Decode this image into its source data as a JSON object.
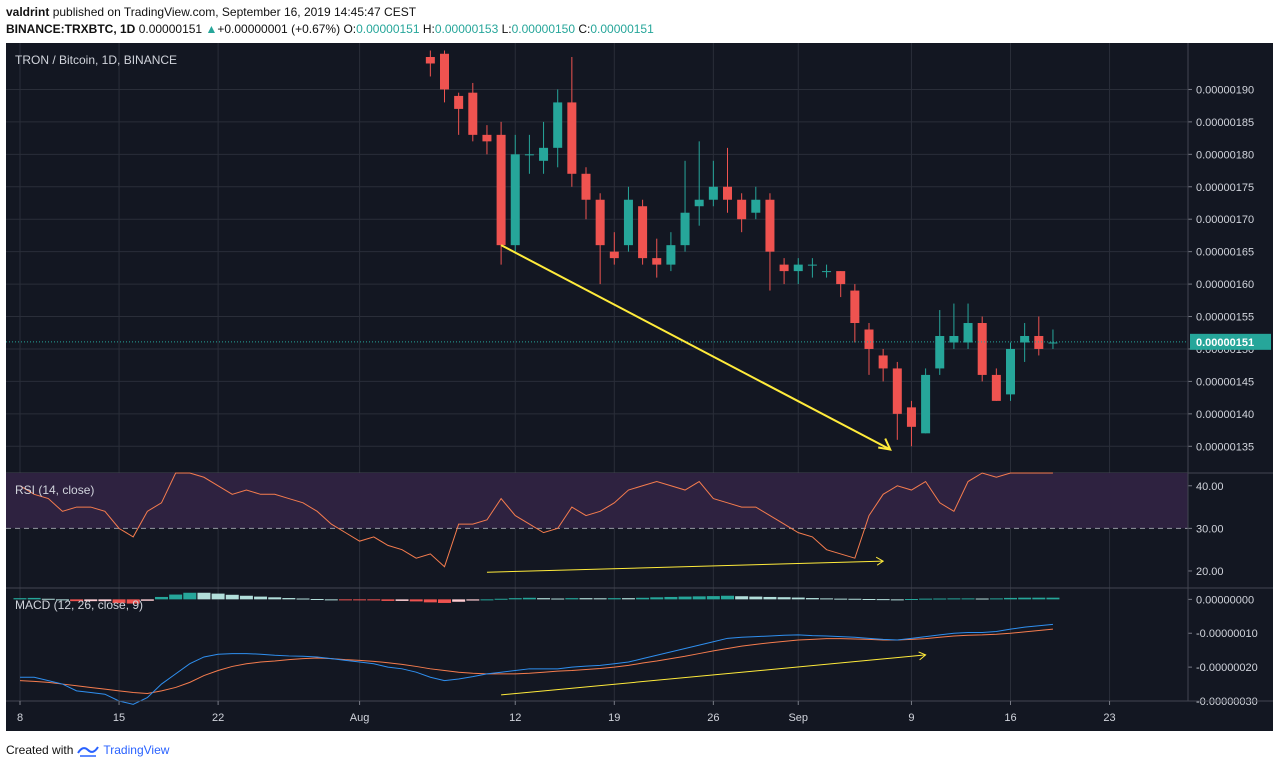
{
  "header": {
    "author": "valdrint",
    "published_text": "published on TradingView.com, September 16, 2019 14:45:47 CEST",
    "symbol": "BINANCE:TRXBTC, 1D",
    "last": "0.00000151",
    "change": "+0.00000001 (+0.67%)",
    "o_label": "O:",
    "o": "0.00000151",
    "h_label": "H:",
    "h": "0.00000153",
    "l_label": "L:",
    "l": "0.00000150",
    "c_label": "C:",
    "c": "0.00000151"
  },
  "footer": {
    "created_with": "Created with",
    "brand": "TradingView"
  },
  "colors": {
    "bg": "#131722",
    "grid": "#2a2e39",
    "up": "#26a69a",
    "down": "#ef5350",
    "rsi_line": "#f57c4e",
    "rsi_band": "#2e2240",
    "macd_line": "#2f8fef",
    "signal_line": "#f57c4e",
    "annotation": "#ffeb3b",
    "price_label_bg": "#26a69a",
    "axis_text": "#d1d4dc"
  },
  "chart_data": [
    {
      "type": "candlestick",
      "title": "TRON / Bitcoin, 1D, BINANCE",
      "y_ticks": [
        "0.00000135",
        "0.00000140",
        "0.00000145",
        "0.00000150",
        "0.00000155",
        "0.00000160",
        "0.00000165",
        "0.00000170",
        "0.00000175",
        "0.00000180",
        "0.00000185",
        "0.00000190"
      ],
      "ylim": [
        1.315e-06,
        1.95e-06
      ],
      "last_price_label": "0.00000151",
      "last_price": 1.511e-06,
      "x_tick_labels": [
        "8",
        "15",
        "22",
        "Aug",
        "12",
        "19",
        "26",
        "Sep",
        "9",
        "16",
        "23"
      ],
      "x_tick_day_index": [
        0,
        7,
        14,
        24,
        35,
        42,
        49,
        55,
        63,
        70,
        77
      ],
      "candles": [
        {
          "i": 29,
          "o": 1.95,
          "h": 1.96,
          "l": 1.92,
          "c": 1.94
        },
        {
          "i": 30,
          "o": 1.955,
          "h": 1.96,
          "l": 1.88,
          "c": 1.9
        },
        {
          "i": 31,
          "o": 1.89,
          "h": 1.895,
          "l": 1.83,
          "c": 1.87
        },
        {
          "i": 32,
          "o": 1.895,
          "h": 1.91,
          "l": 1.82,
          "c": 1.83
        },
        {
          "i": 33,
          "o": 1.83,
          "h": 1.845,
          "l": 1.8,
          "c": 1.82
        },
        {
          "i": 34,
          "o": 1.83,
          "h": 1.85,
          "l": 1.63,
          "c": 1.66
        },
        {
          "i": 35,
          "o": 1.66,
          "h": 1.83,
          "l": 1.65,
          "c": 1.8
        },
        {
          "i": 36,
          "o": 1.8,
          "h": 1.83,
          "l": 1.77,
          "c": 1.8
        },
        {
          "i": 37,
          "o": 1.79,
          "h": 1.85,
          "l": 1.77,
          "c": 1.81
        },
        {
          "i": 38,
          "o": 1.81,
          "h": 1.9,
          "l": 1.78,
          "c": 1.88
        },
        {
          "i": 39,
          "o": 1.88,
          "h": 1.95,
          "l": 1.75,
          "c": 1.77
        },
        {
          "i": 40,
          "o": 1.77,
          "h": 1.78,
          "l": 1.7,
          "c": 1.73
        },
        {
          "i": 41,
          "o": 1.73,
          "h": 1.74,
          "l": 1.6,
          "c": 1.66
        },
        {
          "i": 42,
          "o": 1.65,
          "h": 1.68,
          "l": 1.63,
          "c": 1.64
        },
        {
          "i": 43,
          "o": 1.66,
          "h": 1.75,
          "l": 1.65,
          "c": 1.73
        },
        {
          "i": 44,
          "o": 1.72,
          "h": 1.73,
          "l": 1.63,
          "c": 1.64
        },
        {
          "i": 45,
          "o": 1.64,
          "h": 1.67,
          "l": 1.61,
          "c": 1.63
        },
        {
          "i": 46,
          "o": 1.63,
          "h": 1.68,
          "l": 1.62,
          "c": 1.66
        },
        {
          "i": 47,
          "o": 1.66,
          "h": 1.79,
          "l": 1.65,
          "c": 1.71
        },
        {
          "i": 48,
          "o": 1.72,
          "h": 1.82,
          "l": 1.69,
          "c": 1.73
        },
        {
          "i": 49,
          "o": 1.73,
          "h": 1.79,
          "l": 1.72,
          "c": 1.75
        },
        {
          "i": 50,
          "o": 1.75,
          "h": 1.81,
          "l": 1.71,
          "c": 1.73
        },
        {
          "i": 51,
          "o": 1.73,
          "h": 1.74,
          "l": 1.68,
          "c": 1.7
        },
        {
          "i": 52,
          "o": 1.71,
          "h": 1.75,
          "l": 1.7,
          "c": 1.73
        },
        {
          "i": 53,
          "o": 1.73,
          "h": 1.74,
          "l": 1.59,
          "c": 1.65
        },
        {
          "i": 54,
          "o": 1.63,
          "h": 1.64,
          "l": 1.6,
          "c": 1.62
        },
        {
          "i": 55,
          "o": 1.62,
          "h": 1.64,
          "l": 1.6,
          "c": 1.63
        },
        {
          "i": 56,
          "o": 1.63,
          "h": 1.64,
          "l": 1.61,
          "c": 1.63
        },
        {
          "i": 57,
          "o": 1.62,
          "h": 1.63,
          "l": 1.61,
          "c": 1.62
        },
        {
          "i": 58,
          "o": 1.62,
          "h": 1.62,
          "l": 1.58,
          "c": 1.6
        },
        {
          "i": 59,
          "o": 1.59,
          "h": 1.6,
          "l": 1.51,
          "c": 1.54
        },
        {
          "i": 60,
          "o": 1.53,
          "h": 1.54,
          "l": 1.46,
          "c": 1.5
        },
        {
          "i": 61,
          "o": 1.49,
          "h": 1.5,
          "l": 1.45,
          "c": 1.47
        },
        {
          "i": 62,
          "o": 1.47,
          "h": 1.48,
          "l": 1.36,
          "c": 1.4
        },
        {
          "i": 63,
          "o": 1.41,
          "h": 1.42,
          "l": 1.35,
          "c": 1.38
        },
        {
          "i": 64,
          "o": 1.37,
          "h": 1.47,
          "l": 1.37,
          "c": 1.46
        },
        {
          "i": 65,
          "o": 1.47,
          "h": 1.56,
          "l": 1.46,
          "c": 1.52
        },
        {
          "i": 66,
          "o": 1.51,
          "h": 1.57,
          "l": 1.5,
          "c": 1.52
        },
        {
          "i": 67,
          "o": 1.51,
          "h": 1.57,
          "l": 1.5,
          "c": 1.54
        },
        {
          "i": 68,
          "o": 1.54,
          "h": 1.55,
          "l": 1.45,
          "c": 1.46
        },
        {
          "i": 69,
          "o": 1.46,
          "h": 1.47,
          "l": 1.42,
          "c": 1.42
        },
        {
          "i": 70,
          "o": 1.43,
          "h": 1.51,
          "l": 1.42,
          "c": 1.5
        },
        {
          "i": 71,
          "o": 1.51,
          "h": 1.54,
          "l": 1.48,
          "c": 1.52
        },
        {
          "i": 72,
          "o": 1.52,
          "h": 1.55,
          "l": 1.49,
          "c": 1.5
        },
        {
          "i": 73,
          "o": 1.51,
          "h": 1.53,
          "l": 1.5,
          "c": 1.51
        }
      ],
      "value_scale_note": "prices above are in units of 1e-6"
    },
    {
      "type": "line",
      "title": "RSI (14, close)",
      "y_ticks": [
        "20.00",
        "30.00",
        "40.00"
      ],
      "ylim": [
        16,
        43
      ],
      "band": [
        30,
        70
      ],
      "dashed_level": 30,
      "x": [
        0,
        1,
        2,
        3,
        4,
        5,
        6,
        7,
        8,
        9,
        10,
        11,
        12,
        13,
        14,
        15,
        16,
        17,
        18,
        19,
        20,
        21,
        22,
        23,
        24,
        25,
        26,
        27,
        28,
        29,
        30,
        31,
        32,
        33,
        34,
        35,
        36,
        37,
        38,
        39,
        40,
        41,
        42,
        43,
        44,
        45,
        46,
        47,
        48,
        49,
        50,
        51,
        52,
        53,
        54,
        55,
        56,
        57,
        58,
        59,
        60,
        61,
        62,
        63,
        64,
        65,
        66,
        67,
        68,
        69,
        70,
        71,
        72,
        73
      ],
      "values": [
        40,
        38,
        37,
        34,
        35,
        35,
        34,
        30,
        28,
        34,
        36,
        45,
        50,
        42,
        40,
        38,
        39,
        38,
        38,
        37,
        36,
        34,
        31,
        29,
        27,
        28,
        26,
        25,
        23,
        24,
        21,
        31,
        31,
        32,
        37,
        33,
        31,
        29,
        30,
        35,
        33,
        34,
        36,
        39,
        40,
        41,
        40,
        39,
        41,
        37,
        36,
        35,
        35,
        33,
        31,
        29,
        28,
        25,
        24,
        23,
        33,
        38,
        40,
        39,
        41,
        36,
        34,
        41,
        43,
        42,
        43,
        44,
        46,
        44
      ],
      "annotation": "rising"
    },
    {
      "type": "histogram+line",
      "title": "MACD (12, 26, close, 9)",
      "y_ticks": [
        "0.00000000",
        "-0.00000010",
        "-0.00000020",
        "-0.00000030"
      ],
      "ylim": [
        -3e-07,
        4e-09
      ],
      "macd": [
        -2.3,
        -2.3,
        -2.4,
        -2.5,
        -2.7,
        -2.75,
        -2.8,
        -3.0,
        -3.1,
        -2.9,
        -2.5,
        -2.2,
        -1.9,
        -1.7,
        -1.62,
        -1.6,
        -1.6,
        -1.62,
        -1.65,
        -1.67,
        -1.68,
        -1.7,
        -1.75,
        -1.8,
        -1.85,
        -1.9,
        -2.0,
        -2.05,
        -2.15,
        -2.3,
        -2.4,
        -2.35,
        -2.28,
        -2.2,
        -2.15,
        -2.1,
        -2.05,
        -2.05,
        -2.05,
        -2.0,
        -1.97,
        -1.95,
        -1.9,
        -1.85,
        -1.75,
        -1.65,
        -1.55,
        -1.45,
        -1.35,
        -1.25,
        -1.15,
        -1.12,
        -1.1,
        -1.08,
        -1.06,
        -1.05,
        -1.07,
        -1.08,
        -1.1,
        -1.12,
        -1.15,
        -1.18,
        -1.2,
        -1.15,
        -1.1,
        -1.05,
        -1.0,
        -0.98,
        -0.98,
        -0.95,
        -0.88,
        -0.82,
        -0.78,
        -0.74
      ],
      "signal": [
        -2.4,
        -2.42,
        -2.45,
        -2.5,
        -2.55,
        -2.6,
        -2.65,
        -2.7,
        -2.75,
        -2.78,
        -2.7,
        -2.6,
        -2.45,
        -2.25,
        -2.1,
        -1.98,
        -1.9,
        -1.85,
        -1.82,
        -1.78,
        -1.75,
        -1.73,
        -1.75,
        -1.78,
        -1.8,
        -1.83,
        -1.87,
        -1.92,
        -1.98,
        -2.05,
        -2.1,
        -2.15,
        -2.18,
        -2.2,
        -2.2,
        -2.2,
        -2.18,
        -2.15,
        -2.12,
        -2.1,
        -2.07,
        -2.04,
        -2.0,
        -1.95,
        -1.88,
        -1.82,
        -1.75,
        -1.68,
        -1.6,
        -1.52,
        -1.45,
        -1.38,
        -1.33,
        -1.28,
        -1.24,
        -1.2,
        -1.18,
        -1.16,
        -1.16,
        -1.17,
        -1.18,
        -1.2,
        -1.2,
        -1.18,
        -1.16,
        -1.12,
        -1.08,
        -1.06,
        -1.05,
        -1.03,
        -1.0,
        -0.96,
        -0.92,
        -0.88
      ],
      "value_scale_note": "macd/signal above are in units of 1e-7"
    }
  ]
}
